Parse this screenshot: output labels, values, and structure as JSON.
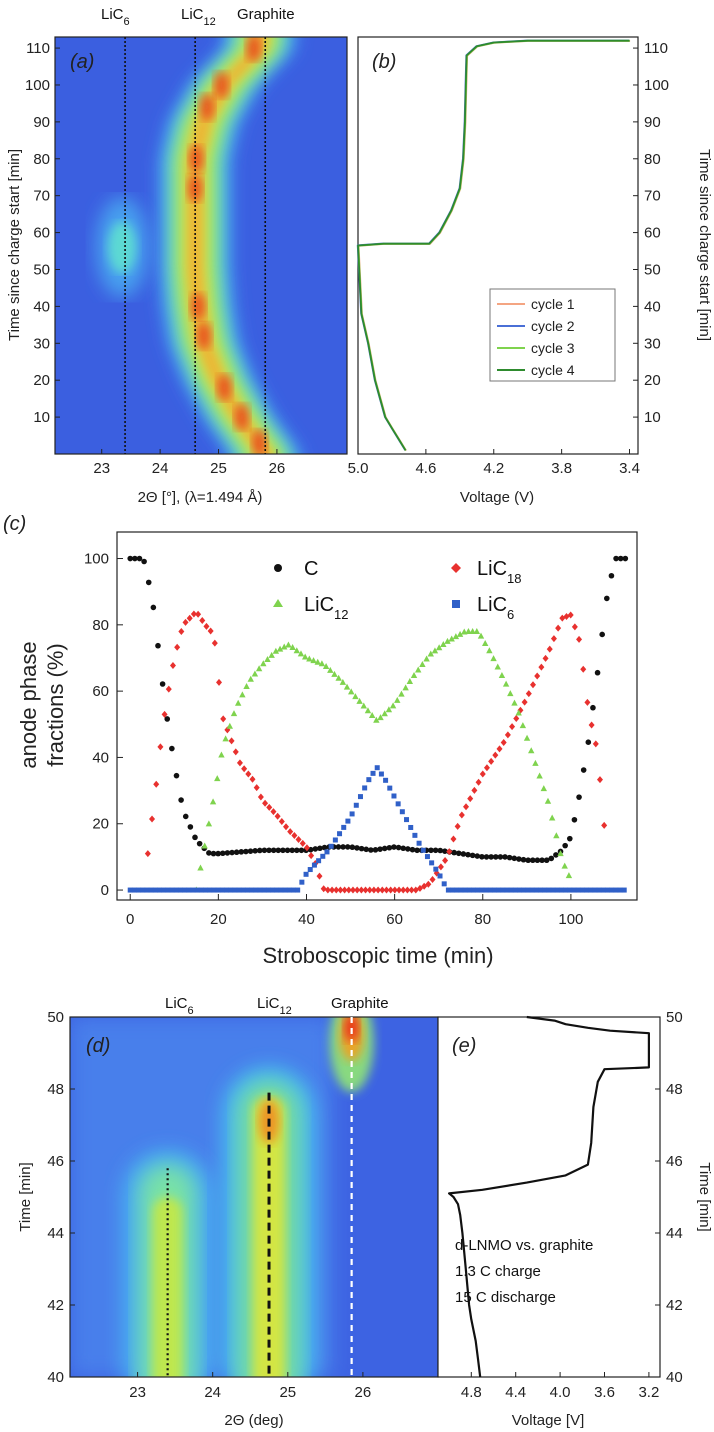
{
  "panel_a": {
    "letter": "(a)",
    "top_labels": [
      "LiC",
      "LiC",
      "Graphite"
    ],
    "top_subs": [
      "6",
      "12",
      ""
    ],
    "xlabel": "2Θ [°], (λ=1.494 Å)",
    "ylabel": "Time since charge start [min]"
  },
  "panel_b": {
    "letter": "(b)",
    "xlabel": "Voltage (V)",
    "ylabel": "Time since charge start [min]",
    "legend": [
      "cycle 1",
      "cycle 2",
      "cycle 3",
      "cycle 4"
    ]
  },
  "panel_c": {
    "letter": "(c)",
    "legend": [
      {
        "label": "C",
        "sub": ""
      },
      {
        "label": "LiC",
        "sub": "18"
      },
      {
        "label": "LiC",
        "sub": "12"
      },
      {
        "label": "LiC",
        "sub": "6"
      }
    ]
  },
  "panel_d": {
    "letter": "(d)",
    "top_labels": [
      "LiC",
      "LiC",
      "Graphite"
    ],
    "top_subs": [
      "6",
      "12",
      ""
    ]
  },
  "panel_e": {
    "letter": "(e)",
    "annotation": [
      "d-LNMO vs. graphite",
      "1.3 C  charge",
      "15 C  discharge"
    ]
  },
  "chart_data": [
    {
      "id": "a",
      "type": "heatmap",
      "title": "",
      "xlabel": "2Θ [°], (λ=1.494 Å)",
      "ylabel": "Time since charge start [min]",
      "xlim": [
        22.2,
        27.2
      ],
      "ylim": [
        0,
        113
      ],
      "x_ticks": [
        23,
        24,
        25,
        26
      ],
      "y_ticks": [
        10,
        20,
        30,
        40,
        50,
        60,
        70,
        80,
        90,
        100,
        110
      ],
      "reference_lines": [
        {
          "label": "LiC6",
          "x": 23.4
        },
        {
          "label": "LiC12",
          "x": 24.6
        },
        {
          "label": "Graphite",
          "x": 25.8
        }
      ],
      "ridges": [
        {
          "name": "main",
          "t": [
            0,
            10,
            20,
            30,
            40,
            50,
            60,
            70,
            80,
            90,
            100,
            110
          ],
          "x": [
            25.8,
            25.35,
            25.0,
            24.75,
            24.65,
            24.6,
            24.6,
            24.6,
            24.6,
            24.75,
            25.1,
            25.7
          ]
        },
        {
          "name": "LiC6 island",
          "x": 23.35,
          "t_range": [
            44,
            68
          ]
        }
      ]
    },
    {
      "id": "b",
      "type": "line",
      "xlabel": "Voltage (V)",
      "ylabel": "Time since charge start [min]",
      "xlim": [
        5.0,
        3.35
      ],
      "ylim": [
        0,
        113
      ],
      "x_ticks": [
        5.0,
        4.6,
        4.2,
        3.8,
        3.4
      ],
      "y_ticks": [
        10,
        20,
        30,
        40,
        50,
        60,
        70,
        80,
        90,
        100,
        110
      ],
      "series": [
        {
          "name": "cycle 1",
          "color": "#f4a582"
        },
        {
          "name": "cycle 2",
          "color": "#4a6fd6"
        },
        {
          "name": "cycle 3",
          "color": "#7fd34e"
        },
        {
          "name": "cycle 4",
          "color": "#2e8b2e"
        }
      ],
      "x": [
        4.72,
        4.76,
        4.8,
        4.84,
        4.87,
        4.9,
        4.94,
        4.98,
        5.0,
        4.85,
        4.75,
        4.65,
        4.58,
        4.52,
        4.45,
        4.4,
        4.38,
        4.37,
        4.365,
        4.36,
        4.3,
        4.2,
        4.0,
        3.8,
        3.6,
        3.4
      ],
      "y": [
        1,
        4,
        7,
        10,
        15,
        20,
        30,
        38,
        56.5,
        57,
        57,
        57,
        57,
        60,
        66,
        72,
        80,
        90,
        100,
        108,
        110.5,
        111.5,
        112,
        112,
        112,
        112
      ]
    },
    {
      "id": "c",
      "type": "scatter",
      "title": "",
      "xlabel": "Stroboscopic time (min)",
      "ylabel": "anode phase fractions (%)",
      "xlim": [
        -3,
        115
      ],
      "ylim": [
        -3,
        108
      ],
      "x_ticks": [
        0,
        20,
        40,
        60,
        80,
        100
      ],
      "y_ticks": [
        0,
        20,
        40,
        60,
        80,
        100
      ],
      "series": [
        {
          "name": "C",
          "color": "#111111",
          "marker": "circle",
          "x": [
            0,
            3,
            5,
            6,
            7,
            8,
            10,
            12,
            15,
            18,
            20,
            30,
            40,
            45,
            50,
            55,
            60,
            65,
            70,
            75,
            80,
            85,
            90,
            95,
            98,
            100,
            102,
            104,
            106,
            108,
            110,
            113
          ],
          "y": [
            100,
            100,
            88,
            77,
            66,
            55,
            38,
            24,
            15,
            11,
            11,
            12,
            12,
            13,
            13,
            12,
            13,
            12,
            12,
            11,
            10,
            10,
            9,
            9,
            12,
            16,
            29,
            45,
            65,
            87,
            100,
            100
          ]
        },
        {
          "name": "LiC18",
          "color": "#e8312f",
          "marker": "diamond",
          "x": [
            4,
            5,
            6,
            7,
            8,
            10,
            12,
            15,
            17,
            19,
            21,
            23,
            25,
            28,
            30,
            33,
            36,
            40,
            42,
            44,
            50,
            55,
            60,
            65,
            68,
            72,
            75,
            80,
            85,
            90,
            95,
            98,
            100,
            102,
            104,
            106,
            108
          ],
          "y": [
            11,
            22,
            33,
            45,
            55,
            70,
            80,
            84,
            80,
            77,
            52,
            45,
            38,
            33,
            27,
            23,
            18,
            13,
            8,
            0,
            0,
            0,
            0,
            0,
            2,
            10,
            22,
            35,
            45,
            58,
            72,
            82,
            83,
            75,
            54,
            42,
            13
          ]
        },
        {
          "name": "LiC12",
          "color": "#7fd34e",
          "marker": "triangle",
          "x": [
            15,
            17,
            19,
            21,
            24,
            27,
            30,
            33,
            36,
            40,
            44,
            48,
            52,
            56,
            60,
            64,
            68,
            72,
            76,
            79,
            82,
            85,
            88,
            92,
            95,
            98,
            100
          ],
          "y": [
            0,
            14,
            28,
            43,
            55,
            63,
            68,
            72,
            74,
            70,
            68,
            63,
            57,
            51,
            56,
            64,
            71,
            75,
            78,
            78,
            71,
            63,
            54,
            38,
            26,
            9,
            3
          ]
        },
        {
          "name": "LiC6",
          "color": "#3060c8",
          "marker": "square",
          "x": [
            0,
            10,
            20,
            30,
            38,
            40,
            45,
            50,
            54,
            56,
            58,
            62,
            66,
            70,
            72,
            73,
            80,
            90,
            100,
            113
          ],
          "y": [
            0,
            0,
            0,
            0,
            0,
            5,
            12,
            22,
            33,
            37,
            33,
            23,
            13,
            5,
            0,
            0,
            0,
            0,
            0,
            0
          ]
        }
      ]
    },
    {
      "id": "d",
      "type": "heatmap",
      "xlabel": "2Θ (deg)",
      "ylabel": "Time [min]",
      "xlim": [
        22.1,
        27.0
      ],
      "ylim": [
        40,
        50
      ],
      "x_ticks": [
        23,
        24,
        25,
        26
      ],
      "y_ticks": [
        40,
        42,
        44,
        46,
        48,
        50
      ],
      "reference_lines": [
        {
          "label": "LiC6",
          "x": 23.4,
          "t_range": [
            40,
            45.8
          ],
          "style": "dotted"
        },
        {
          "label": "LiC12",
          "x": 24.75,
          "t_range": [
            40,
            47.9
          ],
          "style": "dashed"
        },
        {
          "label": "Graphite",
          "x": 25.85,
          "t_range": [
            40,
            50
          ],
          "style": "white-dashed"
        }
      ]
    },
    {
      "id": "e",
      "type": "line",
      "xlabel": "Voltage [V]",
      "ylabel": "Time [min]",
      "xlim": [
        5.1,
        3.1
      ],
      "ylim": [
        40,
        50
      ],
      "x_ticks": [
        4.8,
        4.4,
        4.0,
        3.6,
        3.2
      ],
      "y_ticks": [
        40,
        42,
        44,
        46,
        48,
        50
      ],
      "series": [
        {
          "name": "voltage",
          "color": "#111111",
          "x": [
            4.72,
            4.74,
            4.76,
            4.8,
            4.82,
            4.85,
            4.88,
            4.9,
            4.92,
            4.96,
            4.98,
            5.0,
            4.7,
            4.3,
            3.95,
            3.75,
            3.72,
            3.7,
            3.66,
            3.6,
            3.2,
            3.2,
            3.55,
            3.75,
            3.95,
            4.05,
            4.3
          ],
          "y": [
            40.0,
            40.5,
            41.0,
            41.6,
            42.0,
            43.0,
            44.0,
            44.5,
            44.8,
            45.0,
            45.05,
            45.1,
            45.2,
            45.4,
            45.6,
            45.9,
            46.5,
            47.5,
            48.2,
            48.55,
            48.6,
            49.55,
            49.62,
            49.7,
            49.8,
            49.9,
            50.0
          ]
        }
      ]
    }
  ]
}
